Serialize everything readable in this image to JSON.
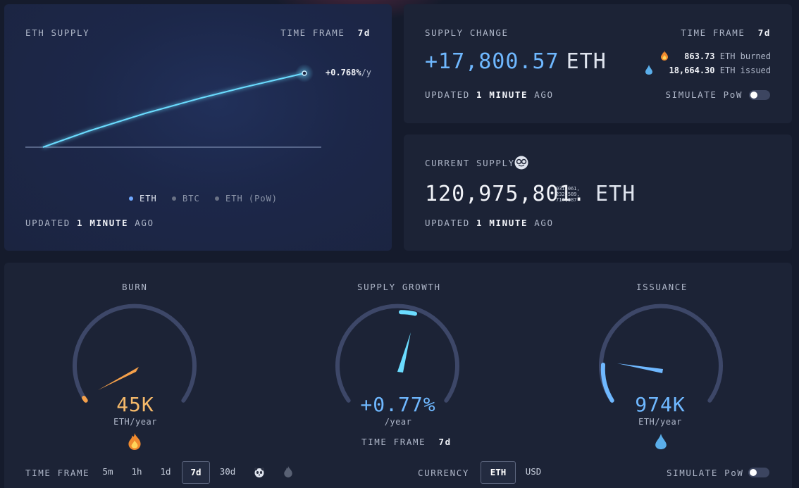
{
  "eth_supply": {
    "title": "ETH SUPPLY",
    "timeframe_label": "TIME FRAME",
    "timeframe_value": "7d",
    "annotation": "+0.768%",
    "annotation_unit": "/y",
    "legend": [
      "ETH",
      "BTC",
      "ETH (PoW)"
    ],
    "updated_prefix": "UPDATED",
    "updated_num": "1",
    "updated_word": "MINUTE",
    "updated_suffix": "AGO",
    "line_color": "#6bdcff"
  },
  "supply_change": {
    "title": "SUPPLY CHANGE",
    "timeframe_label": "TIME FRAME",
    "timeframe_value": "7d",
    "value": "+17,800.57",
    "unit": "ETH",
    "burned_value": "863.73",
    "burned_label": "ETH burned",
    "issued_value": "18,664.30",
    "issued_label": "ETH issued",
    "updated_prefix": "UPDATED",
    "updated_num": "1",
    "updated_word": "MINUTE",
    "updated_suffix": "AGO",
    "simulate_label": "SIMULATE PoW"
  },
  "current_supply": {
    "title": "CURRENT SUPPLY",
    "icon": "nerd-face-icon",
    "integer": "120,975,801.",
    "decimals": [
      "031,061,",
      "232,589,",
      "717,087"
    ],
    "unit": "ETH",
    "updated_prefix": "UPDATED",
    "updated_num": "1",
    "updated_word": "MINUTE",
    "updated_suffix": "AGO"
  },
  "gauges": {
    "burn": {
      "title": "BURN",
      "value": "45K",
      "unit": "ETH/year",
      "fraction": 0.03,
      "color": "#f5a04a",
      "icon": "flame-icon"
    },
    "growth": {
      "title": "SUPPLY GROWTH",
      "value": "+0.77%",
      "unit": "/year",
      "timeframe_label": "TIME FRAME",
      "timeframe_value": "7d",
      "color": "#6bdcff"
    },
    "issuance": {
      "title": "ISSUANCE",
      "value": "974K",
      "unit": "ETH/year",
      "fraction": 0.13,
      "color": "#6fb8ff",
      "icon": "droplet-icon"
    }
  },
  "bottom_bar": {
    "timeframe_label": "TIME FRAME",
    "options": [
      "5m",
      "1h",
      "1d",
      "7d",
      "30d"
    ],
    "selected": "7d",
    "currency_label": "CURRENCY",
    "currency_options": [
      "ETH",
      "USD"
    ],
    "currency_selected": "ETH",
    "simulate_label": "SIMULATE PoW"
  }
}
